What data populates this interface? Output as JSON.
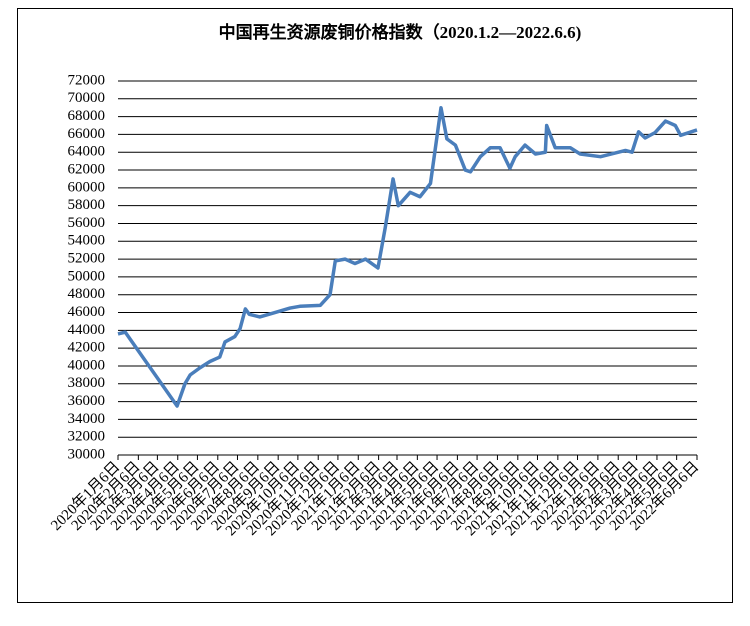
{
  "chart_data": {
    "type": "line",
    "title": "中国再生资源废铜价格指数（2020.1.2—2022.6.6)",
    "x": [
      "2020-01-06",
      "2020-01-17",
      "2020-04-05",
      "2020-04-17",
      "2020-04-25",
      "2020-05-10",
      "2020-05-25",
      "2020-06-09",
      "2020-06-17",
      "2020-07-02",
      "2020-07-10",
      "2020-07-18",
      "2020-07-24",
      "2020-08-09",
      "2020-09-01",
      "2020-09-24",
      "2020-10-09",
      "2020-11-09",
      "2020-11-24",
      "2020-12-02",
      "2020-12-17",
      "2021-01-01",
      "2021-01-17",
      "2021-02-05",
      "2021-02-16",
      "2021-02-28",
      "2021-03-08",
      "2021-03-26",
      "2021-04-10",
      "2021-04-26",
      "2021-05-12",
      "2021-05-21",
      "2021-06-03",
      "2021-06-18",
      "2021-06-26",
      "2021-07-11",
      "2021-07-26",
      "2021-08-10",
      "2021-08-25",
      "2021-09-02",
      "2021-09-17",
      "2021-10-03",
      "2021-10-18",
      "2021-10-20",
      "2021-11-02",
      "2021-11-25",
      "2021-12-10",
      "2022-01-10",
      "2022-02-17",
      "2022-02-27",
      "2022-03-09",
      "2022-03-19",
      "2022-04-03",
      "2022-04-19",
      "2022-05-04",
      "2022-05-12",
      "2022-06-06"
    ],
    "series": [
      {
        "name": "中国再生资源废铜价格指数",
        "color": "#4a7ebb",
        "values": [
          43600,
          43800,
          35500,
          38000,
          39000,
          39800,
          40500,
          41000,
          42700,
          43300,
          44200,
          46400,
          45800,
          45500,
          46000,
          46500,
          46700,
          46800,
          48000,
          51800,
          52000,
          51500,
          52000,
          51000,
          55500,
          61000,
          58000,
          59500,
          59000,
          60500,
          69000,
          65500,
          64800,
          62000,
          61800,
          63500,
          64500,
          64500,
          62200,
          63500,
          64800,
          63800,
          64000,
          67000,
          64500,
          64500,
          63800,
          63500,
          64200,
          64000,
          66300,
          65600,
          66200,
          67500,
          67000,
          65900,
          66500
        ]
      }
    ],
    "xticks": [
      {
        "value": "2020-01-06",
        "label": "2020年1月6日"
      },
      {
        "value": "2020-02-06",
        "label": "2020年2月6日"
      },
      {
        "value": "2020-03-06",
        "label": "2020年3月6日"
      },
      {
        "value": "2020-04-06",
        "label": "2020年4月6日"
      },
      {
        "value": "2020-05-06",
        "label": "2020年5月6日"
      },
      {
        "value": "2020-06-06",
        "label": "2020年6月6日"
      },
      {
        "value": "2020-07-06",
        "label": "2020年7月6日"
      },
      {
        "value": "2020-08-06",
        "label": "2020年8月6日"
      },
      {
        "value": "2020-09-06",
        "label": "2020年9月6日"
      },
      {
        "value": "2020-10-06",
        "label": "2020年10月6日"
      },
      {
        "value": "2020-11-06",
        "label": "2020年11月6日"
      },
      {
        "value": "2020-12-06",
        "label": "2020年12月6日"
      },
      {
        "value": "2021-01-06",
        "label": "2021年1月6日"
      },
      {
        "value": "2021-02-06",
        "label": "2021年2月6日"
      },
      {
        "value": "2021-03-06",
        "label": "2021年3月6日"
      },
      {
        "value": "2021-04-06",
        "label": "2021年4月6日"
      },
      {
        "value": "2021-05-06",
        "label": "2021年5月6日"
      },
      {
        "value": "2021-06-06",
        "label": "2021年6月6日"
      },
      {
        "value": "2021-07-06",
        "label": "2021年7月6日"
      },
      {
        "value": "2021-08-06",
        "label": "2021年8月6日"
      },
      {
        "value": "2021-09-06",
        "label": "2021年9月6日"
      },
      {
        "value": "2021-10-06",
        "label": "2021年10月6日"
      },
      {
        "value": "2021-11-06",
        "label": "2021年11月6日"
      },
      {
        "value": "2021-12-06",
        "label": "2021年12月6日"
      },
      {
        "value": "2022-01-06",
        "label": "2022年1月6日"
      },
      {
        "value": "2022-02-06",
        "label": "2022年2月6日"
      },
      {
        "value": "2022-03-06",
        "label": "2022年3月6日"
      },
      {
        "value": "2022-04-06",
        "label": "2022年4月6日"
      },
      {
        "value": "2022-05-06",
        "label": "2022年5月6日"
      },
      {
        "value": "2022-06-06",
        "label": "2022年6月6日"
      }
    ],
    "ylim": [
      30000,
      72000
    ],
    "yticks": [
      30000,
      32000,
      34000,
      36000,
      38000,
      40000,
      42000,
      44000,
      46000,
      48000,
      50000,
      52000,
      54000,
      56000,
      58000,
      60000,
      62000,
      64000,
      66000,
      68000,
      70000,
      72000
    ],
    "grid": true
  }
}
